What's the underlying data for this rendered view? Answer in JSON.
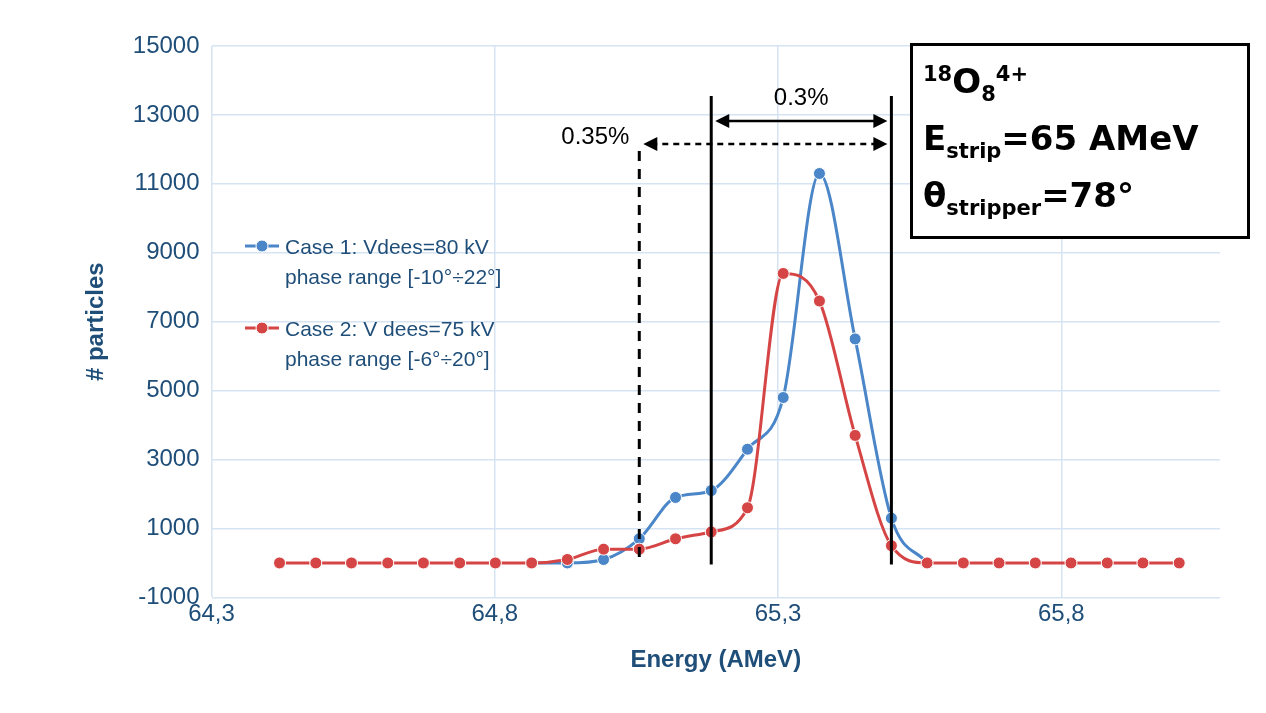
{
  "chart_data": {
    "type": "line",
    "xlabel": "Energy (AMeV)",
    "ylabel": "# particles",
    "x": [
      64.42,
      64.484,
      64.547,
      64.611,
      64.674,
      64.738,
      64.801,
      64.865,
      64.928,
      64.992,
      65.055,
      65.119,
      65.182,
      65.246,
      65.309,
      65.373,
      65.436,
      65.5,
      65.563,
      65.627,
      65.69,
      65.754,
      65.817,
      65.881,
      65.944,
      66.008
    ],
    "series": [
      {
        "name": "Case 1: Vdees=80 kV phase range [-10°÷22°]",
        "color": "#4a86c8",
        "values": [
          null,
          null,
          null,
          null,
          null,
          null,
          null,
          0,
          0,
          100,
          700,
          1900,
          2100,
          3300,
          4800,
          11300,
          6500,
          1300,
          0,
          null,
          null,
          null,
          null,
          null,
          null,
          null
        ]
      },
      {
        "name": "Case 2: V dees=75 kV phase range [-6°÷20°]",
        "color": "#d64545",
        "values": [
          0,
          0,
          0,
          0,
          0,
          0,
          0,
          0,
          100,
          400,
          400,
          700,
          900,
          1600,
          8400,
          7600,
          3700,
          500,
          0,
          0,
          0,
          0,
          0,
          0,
          0,
          0
        ]
      }
    ],
    "xlim": [
      64.3,
      66.08
    ],
    "xticks": [
      {
        "value": 64.3,
        "label": "64,3"
      },
      {
        "value": 64.8,
        "label": "64,8"
      },
      {
        "value": 65.3,
        "label": "65,3"
      },
      {
        "value": 65.8,
        "label": "65,8"
      }
    ],
    "ylim": [
      -1000,
      15000
    ],
    "yticks": [
      -1000,
      1000,
      3000,
      5000,
      7000,
      9000,
      11000,
      13000,
      15000
    ],
    "grid": true,
    "legend": "left",
    "marker": "circle",
    "line_style": "solid",
    "ref_lines": [
      {
        "axis": "x",
        "value": 65.055,
        "color": "#000000",
        "line_style": "dashed"
      },
      {
        "axis": "x",
        "value": 65.182,
        "color": "#000000",
        "line_style": "solid"
      },
      {
        "axis": "x",
        "value": 65.5,
        "color": "#000000",
        "line_style": "solid"
      }
    ],
    "annotations": [
      "0.3%",
      "0.35%",
      "$^{18}$O$_{8}$$^{4+}$",
      "E$_{strip}$=65 AMeV",
      "θ$_{stripper}$=78°"
    ]
  }
}
